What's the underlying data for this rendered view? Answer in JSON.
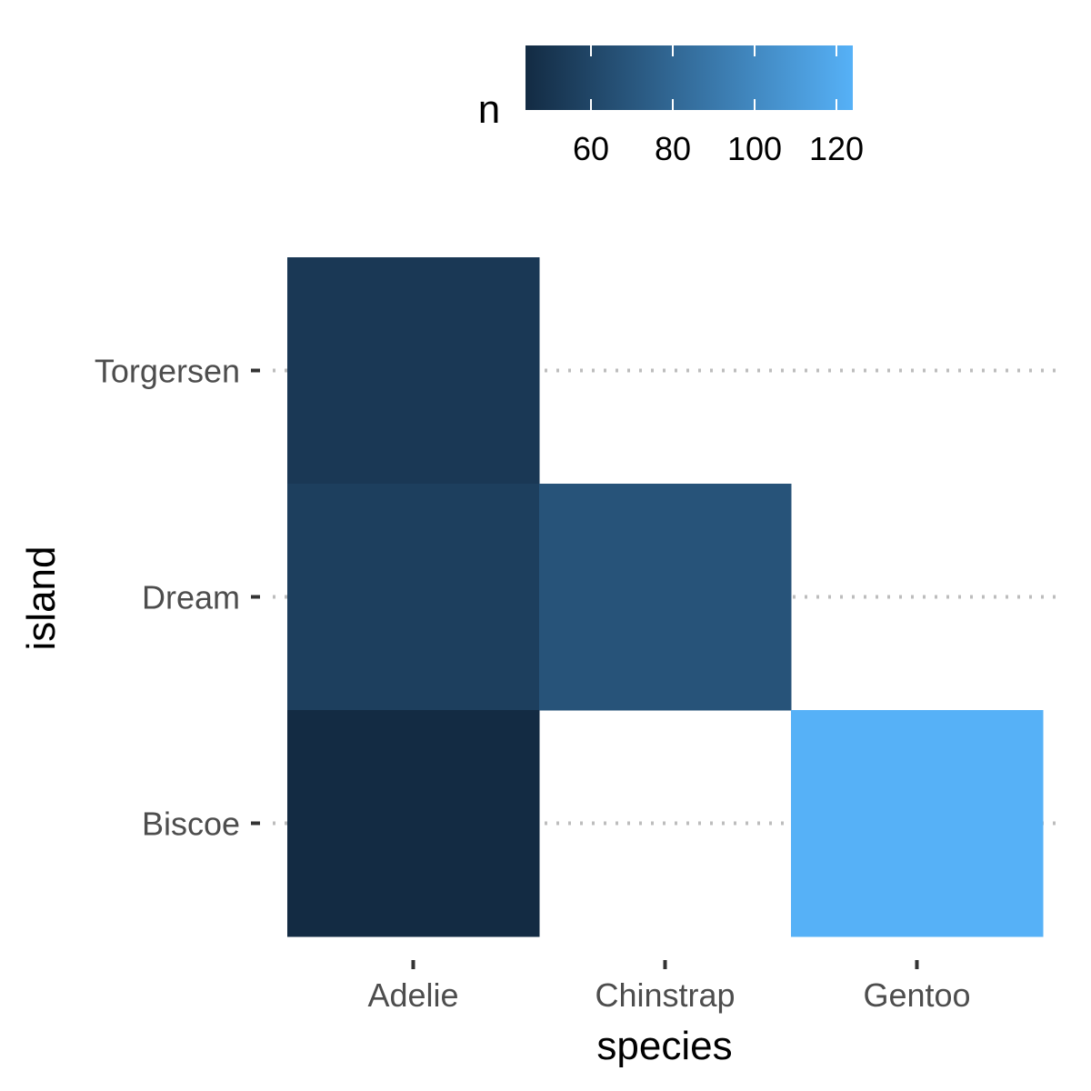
{
  "chart_data": {
    "type": "heatmap",
    "x_categories": [
      "Adelie",
      "Chinstrap",
      "Gentoo"
    ],
    "y_categories": [
      "Biscoe",
      "Dream",
      "Torgersen"
    ],
    "cells": [
      {
        "x": "Adelie",
        "y": "Torgersen",
        "n": 52
      },
      {
        "x": "Adelie",
        "y": "Dream",
        "n": 56
      },
      {
        "x": "Adelie",
        "y": "Biscoe",
        "n": 44
      },
      {
        "x": "Chinstrap",
        "y": "Dream",
        "n": 68
      },
      {
        "x": "Gentoo",
        "y": "Biscoe",
        "n": 124
      }
    ],
    "xlabel": "species",
    "ylabel": "island",
    "legend": {
      "title": "n",
      "position": "top",
      "ticks": [
        60,
        80,
        100,
        120
      ],
      "range": [
        44,
        124
      ],
      "color_low": "#132B43",
      "color_high": "#56B1F7"
    },
    "grid": "horizontal dotted"
  }
}
